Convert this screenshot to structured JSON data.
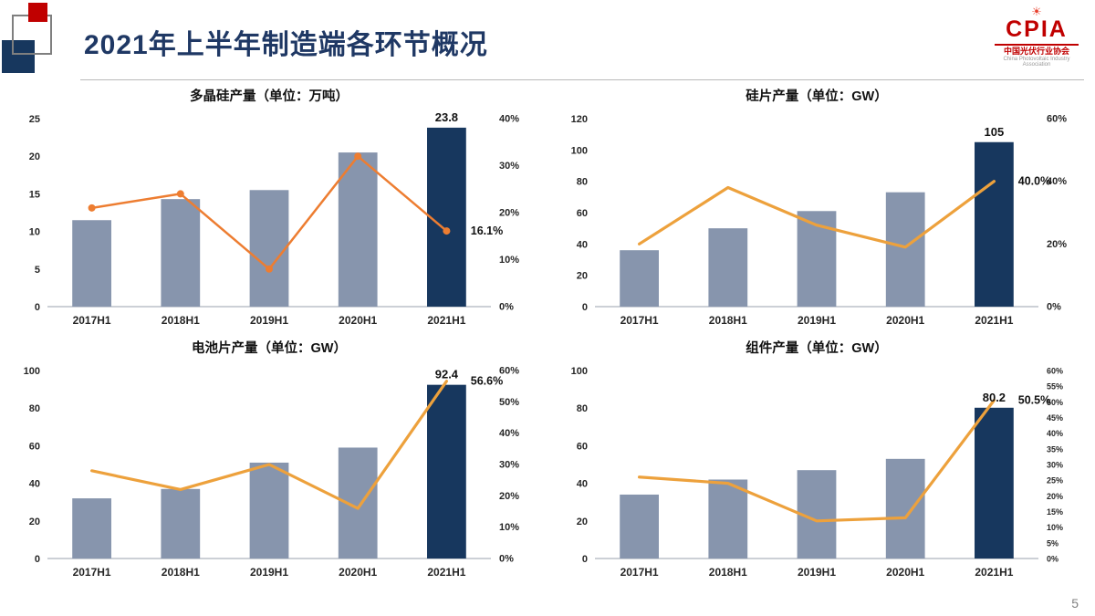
{
  "page": {
    "title": "2021年上半年制造端各环节概况",
    "page_number": "5"
  },
  "logo": {
    "name": "CPIA",
    "org_cn": "中国光伏行业协会",
    "org_en": "China Photovoltaic Industry Association"
  },
  "colors": {
    "bar": "#8795AD",
    "bar_highlight": "#17375E",
    "title_text": "#1F3864",
    "axis_text": "#262626",
    "accent_red": "#C00000"
  },
  "chart_data": [
    {
      "type": "bar+line",
      "title": "多晶硅产量（单位：万吨）",
      "categories": [
        "2017H1",
        "2018H1",
        "2019H1",
        "2020H1",
        "2021H1"
      ],
      "bars": [
        11.5,
        14.3,
        15.5,
        20.5,
        23.8
      ],
      "line_percent": [
        21,
        24,
        8,
        32,
        16.1
      ],
      "left_axis": {
        "min": 0,
        "max": 25,
        "step": 5
      },
      "right_axis": {
        "min": 0,
        "max": 40,
        "step": 10
      },
      "bar_label": "23.8",
      "line_label": "16.1%",
      "line_color": "#ED7D31",
      "markers": true,
      "legend": "none",
      "grid": "off"
    },
    {
      "type": "bar+line",
      "title": "硅片产量（单位：GW）",
      "categories": [
        "2017H1",
        "2018H1",
        "2019H1",
        "2020H1",
        "2021H1"
      ],
      "bars": [
        36,
        50,
        61,
        73,
        105
      ],
      "line_percent": [
        20,
        38,
        26,
        19,
        40
      ],
      "left_axis": {
        "min": 0,
        "max": 120,
        "step": 20
      },
      "right_axis": {
        "min": 0,
        "max": 60,
        "step": 20
      },
      "bar_label": "105",
      "line_label": "40.0%",
      "line_color": "#EDA13C",
      "markers": false,
      "legend": "none",
      "grid": "off"
    },
    {
      "type": "bar+line",
      "title": "电池片产量（单位：GW）",
      "categories": [
        "2017H1",
        "2018H1",
        "2019H1",
        "2020H1",
        "2021H1"
      ],
      "bars": [
        32,
        37,
        51,
        59,
        92.4
      ],
      "line_percent": [
        28,
        22,
        30,
        16,
        56.6
      ],
      "left_axis": {
        "min": 0,
        "max": 100,
        "step": 20
      },
      "right_axis": {
        "min": 0,
        "max": 60,
        "step": 10
      },
      "bar_label": "92.4",
      "line_label": "56.6%",
      "line_color": "#EDA13C",
      "markers": false,
      "legend": "none",
      "grid": "off"
    },
    {
      "type": "bar+line",
      "title": "组件产量（单位：GW）",
      "categories": [
        "2017H1",
        "2018H1",
        "2019H1",
        "2020H1",
        "2021H1"
      ],
      "bars": [
        34,
        42,
        47,
        53,
        80.2
      ],
      "line_percent": [
        26,
        24,
        12,
        13,
        50.5
      ],
      "left_axis": {
        "min": 0,
        "max": 100,
        "step": 20
      },
      "right_axis": {
        "min": 0,
        "max": 60,
        "step": 5
      },
      "bar_label": "80.2",
      "line_label": "50.5%",
      "line_color": "#EDA13C",
      "markers": false,
      "legend": "none",
      "grid": "off"
    }
  ]
}
